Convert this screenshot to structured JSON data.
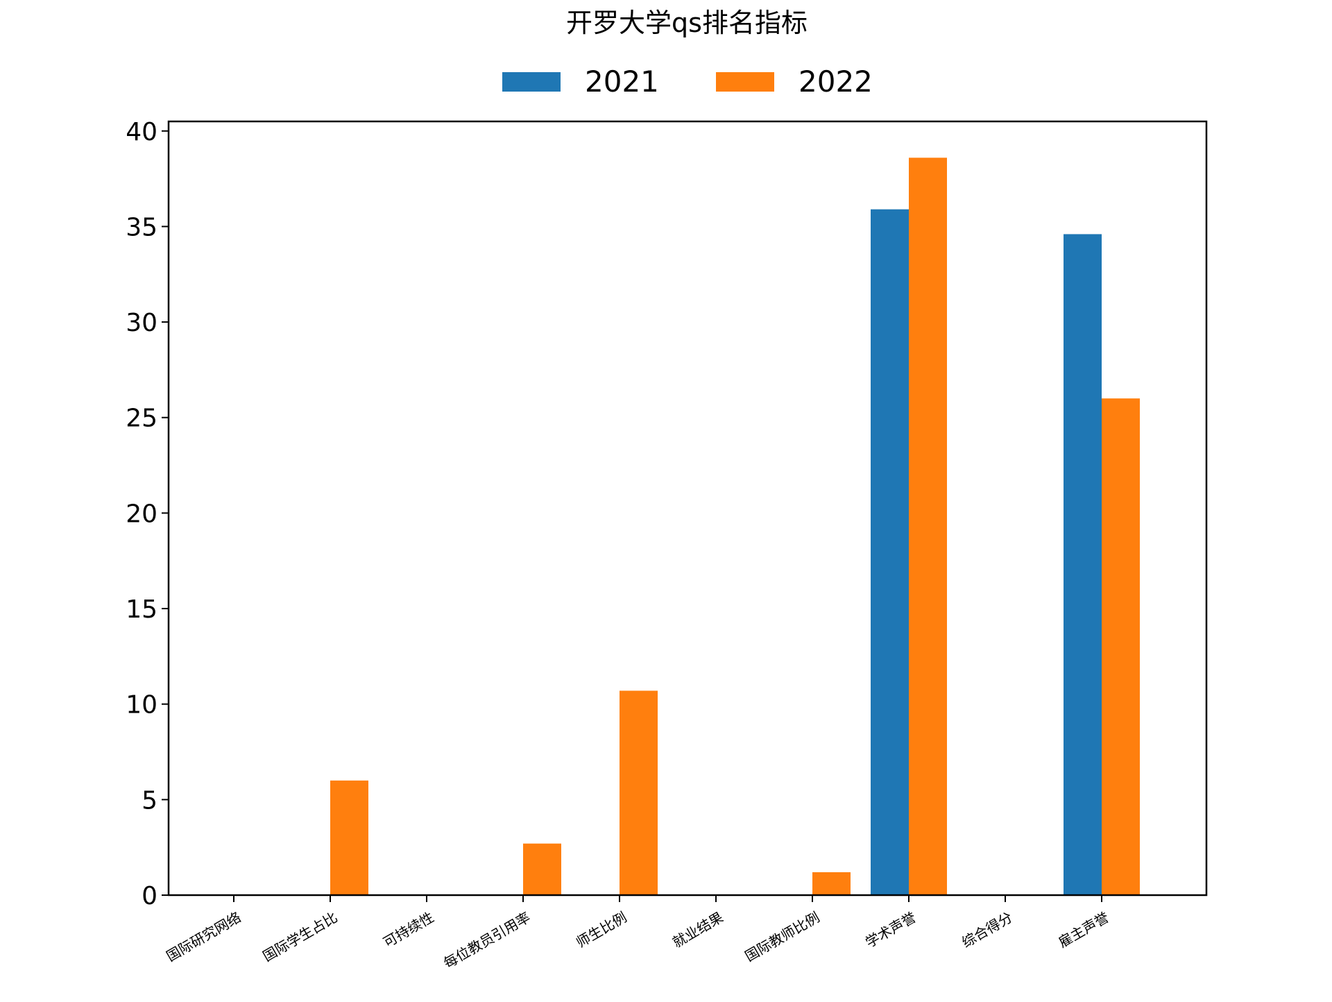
{
  "chart_data": {
    "type": "bar",
    "title": "开罗大学qs排名指标",
    "xlabel": "",
    "ylabel": "",
    "ylim": [
      0,
      40.5
    ],
    "yticks": [
      0,
      5,
      10,
      15,
      20,
      25,
      30,
      35,
      40
    ],
    "grid": false,
    "legend_position": "top-center",
    "categories": [
      "国际研究网络",
      "国际学生占比",
      "可持续性",
      "每位教员引用率",
      "师生比例",
      "就业结果",
      "国际教师比例",
      "学术声誉",
      "综合得分",
      "雇主声誉"
    ],
    "series": [
      {
        "name": "2021",
        "color": "#1f77b4",
        "values": [
          0,
          0,
          0,
          0,
          0,
          0,
          0,
          35.9,
          0,
          34.6
        ]
      },
      {
        "name": "2022",
        "color": "#ff7f0e",
        "values": [
          0,
          6.0,
          0,
          2.7,
          10.7,
          0,
          1.2,
          38.6,
          0,
          26.0
        ]
      }
    ]
  }
}
